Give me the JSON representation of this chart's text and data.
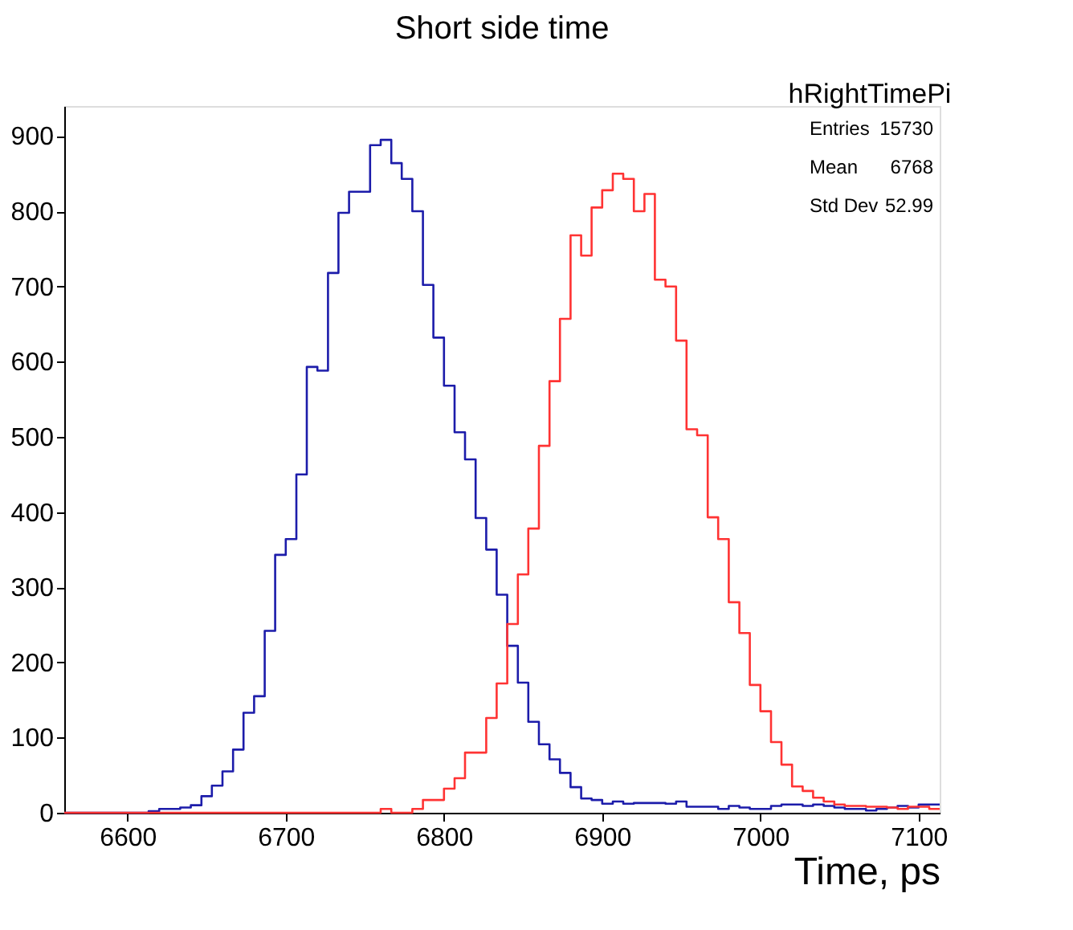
{
  "chart_data": {
    "type": "histogram",
    "title": "Short side time",
    "xlabel": "Time, ps",
    "bins": [
      6560,
      6566.7,
      6573.3,
      6580,
      6586.7,
      6593.3,
      6600,
      6606.7,
      6613.3,
      6620,
      6626.7,
      6633.3,
      6640,
      6646.7,
      6653.3,
      6660,
      6666.7,
      6673.3,
      6680,
      6686.7,
      6693.3,
      6700,
      6706.7,
      6713.3,
      6720,
      6726.7,
      6733.3,
      6740,
      6746.7,
      6753.3,
      6760,
      6766.7,
      6773.3,
      6780,
      6786.7,
      6793.3,
      6800,
      6806.7,
      6813.3,
      6820,
      6826.7,
      6833.3,
      6840,
      6846.7,
      6853.3,
      6860,
      6866.7,
      6873.3,
      6880,
      6886.7,
      6893.3,
      6900,
      6906.7,
      6913.3,
      6920,
      6926.7,
      6933.3,
      6940,
      6946.7,
      6953.3,
      6960,
      6966.7,
      6973.3,
      6980,
      6986.7,
      6993.3,
      7000,
      7006.7,
      7013.3,
      7020,
      7026.7,
      7033.3,
      7040,
      7046.7,
      7053.3,
      7060,
      7066.7,
      7073.3,
      7080,
      7086.7,
      7093.3,
      7100,
      7106.7,
      7113.3
    ],
    "series": [
      {
        "color": "#1c1caa",
        "values": [
          0,
          0,
          0,
          0,
          0,
          0,
          0,
          0,
          2,
          5,
          5,
          7,
          10,
          22,
          36,
          55,
          84,
          133,
          155,
          242,
          343,
          364,
          450,
          593,
          588,
          718,
          798,
          826,
          826,
          888,
          895,
          864,
          843,
          800,
          702,
          632,
          568,
          506,
          470,
          392,
          350,
          290,
          222,
          173,
          121,
          91,
          71,
          53,
          34,
          19,
          17,
          12,
          15,
          12,
          13,
          13,
          13,
          12,
          15,
          8,
          8,
          8,
          5,
          9,
          7,
          5,
          5,
          9,
          11,
          11,
          9,
          11,
          9,
          7,
          5,
          5,
          3,
          5,
          7,
          9,
          7,
          11,
          11
        ]
      },
      {
        "color": "#ff3333",
        "values": [
          0,
          0,
          0,
          0,
          0,
          0,
          0,
          0,
          0,
          0,
          0,
          0,
          0,
          0,
          0,
          0,
          0,
          0,
          0,
          0,
          0,
          0,
          0,
          0,
          0,
          0,
          0,
          0,
          0,
          0,
          5,
          0,
          0,
          5,
          17,
          17,
          32,
          46,
          80,
          80,
          126,
          172,
          251,
          317,
          378,
          488,
          574,
          657,
          768,
          741,
          805,
          828,
          850,
          843,
          800,
          823,
          709,
          700,
          628,
          510,
          502,
          393,
          364,
          280,
          239,
          170,
          135,
          94,
          64,
          35,
          29,
          20,
          15,
          11,
          9,
          9,
          8,
          8,
          7,
          5,
          8,
          8,
          5
        ]
      }
    ],
    "xlim": [
      6560,
      7113.3
    ],
    "ylim": [
      0,
      940
    ],
    "xticks": [
      6600,
      6700,
      6800,
      6900,
      7000,
      7100
    ],
    "yticks": [
      0,
      100,
      200,
      300,
      400,
      500,
      600,
      700,
      800,
      900
    ],
    "annotations": [
      "hRightTimePi",
      "Entries",
      "15730",
      "Mean",
      "6768",
      "Std Dev",
      "52.99"
    ]
  }
}
